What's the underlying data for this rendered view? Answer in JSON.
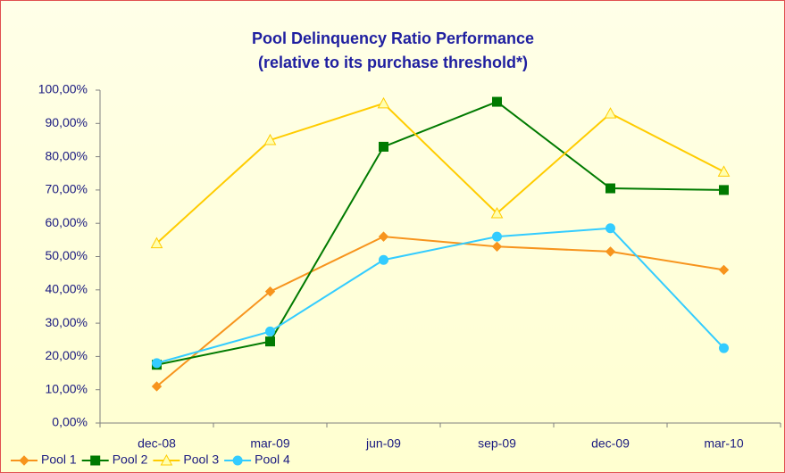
{
  "chart_data": {
    "type": "line",
    "title": "Pool Delinquency Ratio Performance",
    "subtitle": "(relative to its purchase threshold*)",
    "categories": [
      "dec-08",
      "mar-09",
      "jun-09",
      "sep-09",
      "dec-09",
      "mar-10"
    ],
    "series": [
      {
        "name": "Pool 1",
        "color": "#f7941d",
        "marker": "diamond",
        "values": [
          11,
          39.5,
          56,
          53,
          51.5,
          46
        ]
      },
      {
        "name": "Pool 2",
        "color": "#007a00",
        "marker": "square",
        "values": [
          17.5,
          24.5,
          83,
          96.5,
          70.5,
          70
        ]
      },
      {
        "name": "Pool 3",
        "color": "#ffcc00",
        "marker": "triangle",
        "values": [
          54,
          85,
          96,
          63,
          93,
          75.5
        ]
      },
      {
        "name": "Pool 4",
        "color": "#33ccff",
        "marker": "circle",
        "values": [
          18,
          27.5,
          49,
          56,
          58.5,
          22.5
        ]
      }
    ],
    "ylim": [
      0,
      100
    ],
    "yticks": [
      {
        "value": 0,
        "label": "0,00%"
      },
      {
        "value": 10,
        "label": "10,00%"
      },
      {
        "value": 20,
        "label": "20,00%"
      },
      {
        "value": 30,
        "label": "30,00%"
      },
      {
        "value": 40,
        "label": "40,00%"
      },
      {
        "value": 50,
        "label": "50,00%"
      },
      {
        "value": 60,
        "label": "60,00%"
      },
      {
        "value": 70,
        "label": "70,00%"
      },
      {
        "value": 80,
        "label": "80,00%"
      },
      {
        "value": 90,
        "label": "90,00%"
      },
      {
        "value": 100,
        "label": "100,00%"
      }
    ],
    "grid": false,
    "legend": "bottom-left"
  }
}
